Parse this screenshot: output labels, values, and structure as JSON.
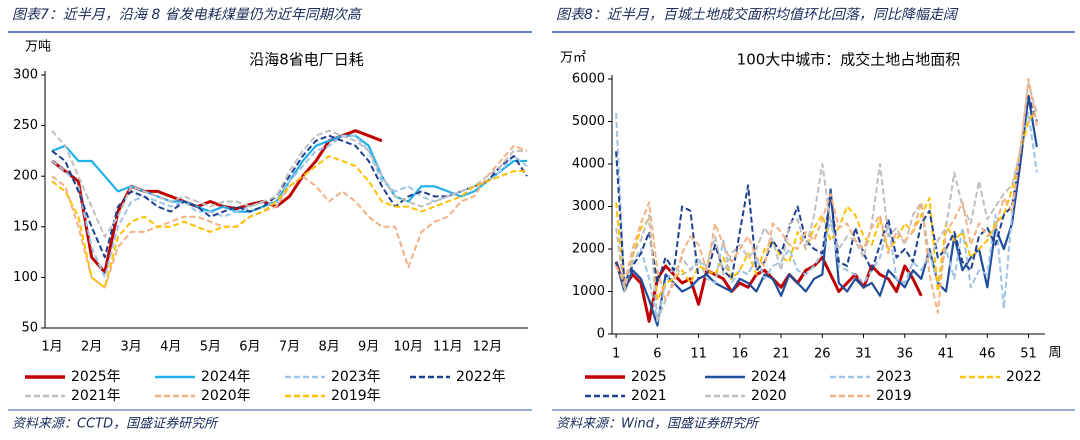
{
  "headings": [
    "图表7：近半月，沿海 8 省发电耗煤量仍为近年同期次高",
    "图表8：近半月，百城土地成交面积均值环比回落，同比降幅走阔"
  ],
  "sources": [
    "资料来源：CCTD，国盛证券研究所",
    "资料来源：Wind，国盛证券研究所"
  ],
  "chart_data": [
    {
      "type": "line",
      "title": "沿海8省电厂日耗",
      "y_label": "万吨",
      "categories": [
        "1月",
        null,
        null,
        "2月",
        null,
        null,
        "3月",
        null,
        null,
        "4月",
        null,
        null,
        "5月",
        null,
        null,
        "6月",
        null,
        null,
        "7月",
        null,
        null,
        "8月",
        null,
        null,
        "9月",
        null,
        null,
        "10月",
        null,
        null,
        "11月",
        null,
        null,
        "12月",
        null,
        null,
        null
      ],
      "ylim": [
        50,
        300
      ],
      "yticks": [
        50,
        100,
        150,
        200,
        250,
        300
      ],
      "grid": false,
      "series": [
        {
          "name": "2025年",
          "color": "#c00000",
          "dashed": false,
          "values": [
            215,
            205,
            195,
            120,
            105,
            165,
            190,
            185,
            185,
            180,
            175,
            170,
            175,
            170,
            168,
            172,
            175,
            170,
            180,
            200,
            215,
            235,
            240,
            245,
            240,
            235,
            null,
            null,
            null,
            null,
            null,
            null,
            null,
            null,
            null,
            null,
            null
          ]
        },
        {
          "name": "2024年",
          "color": "#21b0e8",
          "dashed": false,
          "values": [
            225,
            230,
            215,
            215,
            200,
            185,
            190,
            185,
            180,
            175,
            175,
            170,
            165,
            170,
            165,
            165,
            170,
            175,
            195,
            215,
            230,
            235,
            240,
            240,
            230,
            200,
            180,
            175,
            190,
            190,
            185,
            180,
            185,
            195,
            205,
            215,
            215
          ]
        },
        {
          "name": "2023年",
          "color": "#9dc3e6",
          "dashed": true,
          "values": [
            215,
            205,
            190,
            130,
            100,
            150,
            175,
            180,
            175,
            170,
            175,
            165,
            165,
            160,
            165,
            170,
            175,
            170,
            195,
            210,
            225,
            230,
            240,
            240,
            225,
            195,
            185,
            190,
            180,
            175,
            180,
            185,
            190,
            195,
            205,
            220,
            210
          ]
        },
        {
          "name": "2022年",
          "color": "#1f3f8f",
          "dashed": true,
          "values": [
            225,
            215,
            185,
            150,
            120,
            170,
            185,
            180,
            170,
            165,
            175,
            170,
            160,
            165,
            170,
            165,
            170,
            180,
            200,
            220,
            235,
            240,
            235,
            230,
            215,
            190,
            170,
            180,
            185,
            180,
            180,
            185,
            190,
            195,
            210,
            220,
            200
          ]
        },
        {
          "name": "2021年",
          "color": "#bfbfbf",
          "dashed": true,
          "values": [
            245,
            230,
            200,
            170,
            140,
            160,
            190,
            185,
            180,
            175,
            180,
            175,
            170,
            175,
            175,
            170,
            175,
            180,
            205,
            225,
            240,
            245,
            240,
            235,
            225,
            200,
            180,
            175,
            170,
            175,
            180,
            185,
            190,
            200,
            210,
            225,
            225
          ]
        },
        {
          "name": "2020年",
          "color": "#f4b183",
          "dashed": true,
          "values": [
            200,
            190,
            150,
            100,
            90,
            130,
            145,
            145,
            150,
            155,
            160,
            160,
            155,
            150,
            150,
            160,
            165,
            170,
            190,
            200,
            190,
            175,
            185,
            175,
            160,
            150,
            150,
            110,
            145,
            155,
            160,
            175,
            180,
            200,
            215,
            230,
            225
          ]
        },
        {
          "name": "2019年",
          "color": "#ffc000",
          "dashed": true,
          "values": [
            195,
            185,
            160,
            100,
            90,
            140,
            155,
            160,
            150,
            150,
            155,
            150,
            145,
            150,
            150,
            160,
            165,
            175,
            190,
            200,
            210,
            220,
            215,
            210,
            195,
            175,
            170,
            170,
            165,
            170,
            175,
            180,
            190,
            195,
            200,
            205,
            205
          ]
        }
      ]
    },
    {
      "type": "line",
      "title": "100大中城市：成交土地占地面积",
      "y_label": "万㎡",
      "x_label": "周",
      "x": [
        1,
        2,
        3,
        4,
        5,
        6,
        7,
        8,
        9,
        10,
        11,
        12,
        13,
        14,
        15,
        16,
        17,
        18,
        19,
        20,
        21,
        22,
        23,
        24,
        25,
        26,
        27,
        28,
        29,
        30,
        31,
        32,
        33,
        34,
        35,
        36,
        37,
        38,
        39,
        40,
        41,
        42,
        43,
        44,
        45,
        46,
        47,
        48,
        49,
        50,
        51,
        52
      ],
      "xlim": [
        0.5,
        53
      ],
      "xticks": [
        1,
        6,
        11,
        16,
        21,
        26,
        31,
        36,
        41,
        46,
        51
      ],
      "ylim": [
        0,
        6000
      ],
      "yticks": [
        0,
        1000,
        2000,
        3000,
        4000,
        5000,
        6000
      ],
      "grid": false,
      "series": [
        {
          "name": "2025",
          "color": "#c00000",
          "dashed": false,
          "values": [
            1700,
            1100,
            1400,
            1200,
            300,
            1300,
            1600,
            1400,
            1200,
            1300,
            700,
            1500,
            1400,
            1300,
            1000,
            1200,
            1100,
            1400,
            1500,
            1300,
            1100,
            1400,
            1200,
            1500,
            1600,
            1800,
            1400,
            1000,
            1200,
            1400,
            1100,
            1600,
            1400,
            1300,
            1000,
            1600,
            1300,
            900,
            null,
            null,
            null,
            null,
            null,
            null,
            null,
            null,
            null,
            null,
            null,
            null,
            null,
            null
          ]
        },
        {
          "name": "2024",
          "color": "#1f4e9c",
          "dashed": false,
          "values": [
            1700,
            1000,
            1500,
            1300,
            800,
            200,
            1400,
            1200,
            1000,
            1100,
            1300,
            1400,
            1200,
            1100,
            1000,
            1300,
            1200,
            1000,
            1400,
            1300,
            900,
            1400,
            1200,
            1000,
            1300,
            1400,
            3400,
            1200,
            1000,
            1300,
            1100,
            1200,
            900,
            1500,
            1300,
            1100,
            1500,
            1300,
            2000,
            1200,
            1000,
            2300,
            1500,
            1800,
            2000,
            1100,
            2500,
            2000,
            2600,
            4000,
            5600,
            4400
          ]
        },
        {
          "name": "2023",
          "color": "#9dc3e6",
          "dashed": true,
          "values": [
            5200,
            1100,
            1700,
            2000,
            1300,
            300,
            1200,
            1600,
            1400,
            1500,
            1800,
            1300,
            1200,
            2200,
            1200,
            1500,
            1400,
            1800,
            1300,
            1600,
            1700,
            2000,
            1500,
            1400,
            1600,
            1900,
            2700,
            1600,
            1500,
            1400,
            1200,
            1500,
            1800,
            2600,
            1300,
            1200,
            1700,
            1500,
            1900,
            1200,
            2000,
            1300,
            2500,
            1100,
            1500,
            1400,
            2800,
            600,
            2800,
            4400,
            5200,
            3800
          ]
        },
        {
          "name": "2022",
          "color": "#ffc000",
          "dashed": true,
          "values": [
            3100,
            1100,
            1800,
            2500,
            2700,
            800,
            1200,
            1300,
            1500,
            1200,
            1600,
            1500,
            1400,
            1800,
            1300,
            1500,
            1900,
            1400,
            2000,
            2200,
            1800,
            1700,
            2400,
            2000,
            2500,
            2800,
            2200,
            2500,
            3000,
            2800,
            2300,
            2100,
            2700,
            2000,
            2200,
            2600,
            2400,
            2800,
            3200,
            1000,
            2600,
            2200,
            2400,
            1800,
            2000,
            2200,
            2600,
            2800,
            3400,
            4300,
            5000,
            5300
          ]
        },
        {
          "name": "2021",
          "color": "#1f3f8f",
          "dashed": true,
          "values": [
            4300,
            1200,
            1600,
            1900,
            2400,
            1200,
            1800,
            1500,
            3000,
            2900,
            1300,
            1400,
            2100,
            1500,
            1300,
            2400,
            3500,
            1500,
            1700,
            2200,
            1900,
            2500,
            3000,
            2200,
            2000,
            1900,
            3300,
            1700,
            1600,
            2500,
            1900,
            1500,
            2100,
            2700,
            1800,
            2000,
            1700,
            2600,
            2900,
            1800,
            2000,
            2400,
            1700,
            1500,
            2300,
            2500,
            2100,
            2800,
            3000,
            4200,
            5600,
            5000
          ]
        },
        {
          "name": "2020",
          "color": "#bfbfbf",
          "dashed": true,
          "values": [
            2500,
            1000,
            1900,
            2200,
            2800,
            300,
            800,
            1300,
            1800,
            1500,
            1700,
            1600,
            2300,
            1400,
            1900,
            2100,
            1800,
            2000,
            2500,
            2200,
            1500,
            2600,
            2700,
            2000,
            2800,
            4000,
            2600,
            2000,
            2300,
            2200,
            1800,
            2600,
            4000,
            2300,
            2500,
            2100,
            2800,
            3100,
            1800,
            2200,
            2500,
            3800,
            3000,
            2600,
            3600,
            2700,
            3000,
            3300,
            3500,
            4300,
            5900,
            5200
          ]
        },
        {
          "name": "2019",
          "color": "#f4b183",
          "dashed": true,
          "values": [
            1600,
            1200,
            2000,
            2600,
            3100,
            1500,
            800,
            1200,
            1900,
            2300,
            2100,
            1500,
            2600,
            2100,
            1700,
            2000,
            2300,
            1800,
            1600,
            2600,
            2400,
            2100,
            2000,
            2400,
            2200,
            2700,
            3300,
            2500,
            2600,
            2200,
            2000,
            2500,
            2800,
            1900,
            2400,
            2200,
            2400,
            3100,
            1400,
            500,
            2400,
            2700,
            3100,
            2100,
            2600,
            2300,
            2500,
            3200,
            2900,
            4300,
            6000,
            4900
          ]
        }
      ]
    }
  ]
}
